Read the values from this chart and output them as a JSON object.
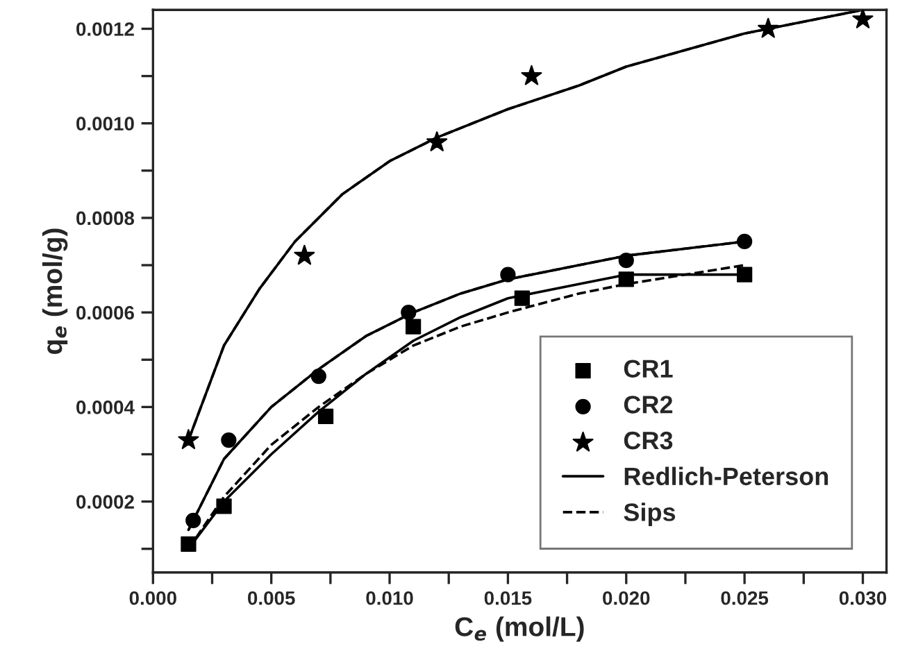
{
  "chart_data": {
    "type": "scatter",
    "xlabel": "C$_{e}$ (mol/L)",
    "ylabel": "q$_{e}$ (mol/g)",
    "xlim": [
      0.0,
      0.031
    ],
    "ylim": [
      5e-05,
      0.00124
    ],
    "xticks": [
      {
        "value": 0.0,
        "label": "0.000"
      },
      {
        "value": 0.0025,
        "label": null
      },
      {
        "value": 0.005,
        "label": "0.005"
      },
      {
        "value": 0.0075,
        "label": null
      },
      {
        "value": 0.01,
        "label": "0.010"
      },
      {
        "value": 0.0125,
        "label": null
      },
      {
        "value": 0.015,
        "label": "0.015"
      },
      {
        "value": 0.0175,
        "label": null
      },
      {
        "value": 0.02,
        "label": "0.020"
      },
      {
        "value": 0.0225,
        "label": null
      },
      {
        "value": 0.025,
        "label": "0.025"
      },
      {
        "value": 0.0275,
        "label": null
      },
      {
        "value": 0.03,
        "label": "0.030"
      }
    ],
    "yticks": [
      {
        "value": 0.0001,
        "label": null
      },
      {
        "value": 0.0002,
        "label": "0.0002"
      },
      {
        "value": 0.0003,
        "label": null
      },
      {
        "value": 0.0004,
        "label": "0.0004"
      },
      {
        "value": 0.0005,
        "label": null
      },
      {
        "value": 0.0006,
        "label": "0.0006"
      },
      {
        "value": 0.0007,
        "label": null
      },
      {
        "value": 0.0008,
        "label": "0.0008"
      },
      {
        "value": 0.0009,
        "label": null
      },
      {
        "value": 0.001,
        "label": "0.0010"
      },
      {
        "value": 0.0011,
        "label": null
      },
      {
        "value": 0.0012,
        "label": "0.0012"
      }
    ],
    "grid": false,
    "legend": "bottom right",
    "series": [
      {
        "name": "CR1",
        "marker": "square",
        "color": "#000000",
        "x": [
          0.0015,
          0.003,
          0.0073,
          0.011,
          0.0156,
          0.02,
          0.025
        ],
        "values": [
          0.00011,
          0.00019,
          0.00038,
          0.00057,
          0.00063,
          0.00067,
          0.00068
        ]
      },
      {
        "name": "CR2",
        "marker": "circle",
        "color": "#000000",
        "x": [
          0.0017,
          0.0032,
          0.007,
          0.0108,
          0.015,
          0.02,
          0.025
        ],
        "values": [
          0.00016,
          0.00033,
          0.000465,
          0.0006,
          0.00068,
          0.00071,
          0.00075
        ]
      },
      {
        "name": "CR3",
        "marker": "star",
        "color": "#000000",
        "x": [
          0.0015,
          0.0064,
          0.012,
          0.016,
          0.026,
          0.03
        ],
        "values": [
          0.00033,
          0.00072,
          0.00096,
          0.0011,
          0.0012,
          0.00122
        ]
      },
      {
        "name": "Redlich-Peterson",
        "type": "line",
        "line_style": "solid",
        "color": "#000000",
        "x": [
          0.0015,
          0.003,
          0.0045,
          0.006,
          0.008,
          0.01,
          0.012,
          0.015,
          0.018,
          0.02,
          0.025,
          0.03
        ],
        "values": [
          0.00033,
          0.00053,
          0.00065,
          0.00075,
          0.00085,
          0.00092,
          0.00097,
          0.00103,
          0.00108,
          0.00112,
          0.00119,
          0.00124
        ]
      },
      {
        "name": "Sips",
        "type": "line",
        "line_style": "dashed",
        "color": "#000000",
        "x": [
          0.0015,
          0.003,
          0.0045,
          0.006,
          0.008,
          0.01,
          0.012,
          0.015,
          0.018,
          0.02,
          0.025,
          0.03
        ],
        "values": [
          0.00033,
          0.00053,
          0.00065,
          0.00075,
          0.00085,
          0.00092,
          0.00097,
          0.00103,
          0.00108,
          0.00112,
          0.00119,
          0.00124
        ]
      },
      {
        "type": "line",
        "line_style": "solid",
        "color": "#000000",
        "x": [
          0.0015,
          0.003,
          0.005,
          0.007,
          0.009,
          0.011,
          0.013,
          0.015,
          0.018,
          0.02,
          0.025
        ],
        "values": [
          0.00014,
          0.00029,
          0.0004,
          0.00048,
          0.00055,
          0.0006,
          0.00064,
          0.00067,
          0.0007,
          0.00072,
          0.00075
        ]
      },
      {
        "type": "line",
        "line_style": "dashed",
        "color": "#000000",
        "x": [
          0.0015,
          0.003,
          0.005,
          0.007,
          0.009,
          0.011,
          0.013,
          0.015,
          0.018,
          0.02,
          0.025
        ],
        "values": [
          0.00014,
          0.00029,
          0.0004,
          0.00048,
          0.00055,
          0.0006,
          0.00064,
          0.00067,
          0.0007,
          0.00072,
          0.00075
        ]
      },
      {
        "type": "line",
        "line_style": "solid",
        "color": "#000000",
        "x": [
          0.0015,
          0.003,
          0.005,
          0.007,
          0.009,
          0.011,
          0.013,
          0.015,
          0.018,
          0.02,
          0.022,
          0.025
        ],
        "values": [
          0.0001,
          0.0002,
          0.0003,
          0.00039,
          0.00047,
          0.00054,
          0.00059,
          0.00063,
          0.00066,
          0.00068,
          0.00068,
          0.00068
        ]
      },
      {
        "type": "line",
        "line_style": "dashed",
        "color": "#000000",
        "x": [
          0.0015,
          0.003,
          0.005,
          0.007,
          0.009,
          0.011,
          0.013,
          0.015,
          0.018,
          0.02,
          0.025
        ],
        "values": [
          0.0001,
          0.00021,
          0.00032,
          0.0004,
          0.00047,
          0.00053,
          0.00057,
          0.0006,
          0.00064,
          0.00066,
          0.0007
        ]
      }
    ]
  }
}
